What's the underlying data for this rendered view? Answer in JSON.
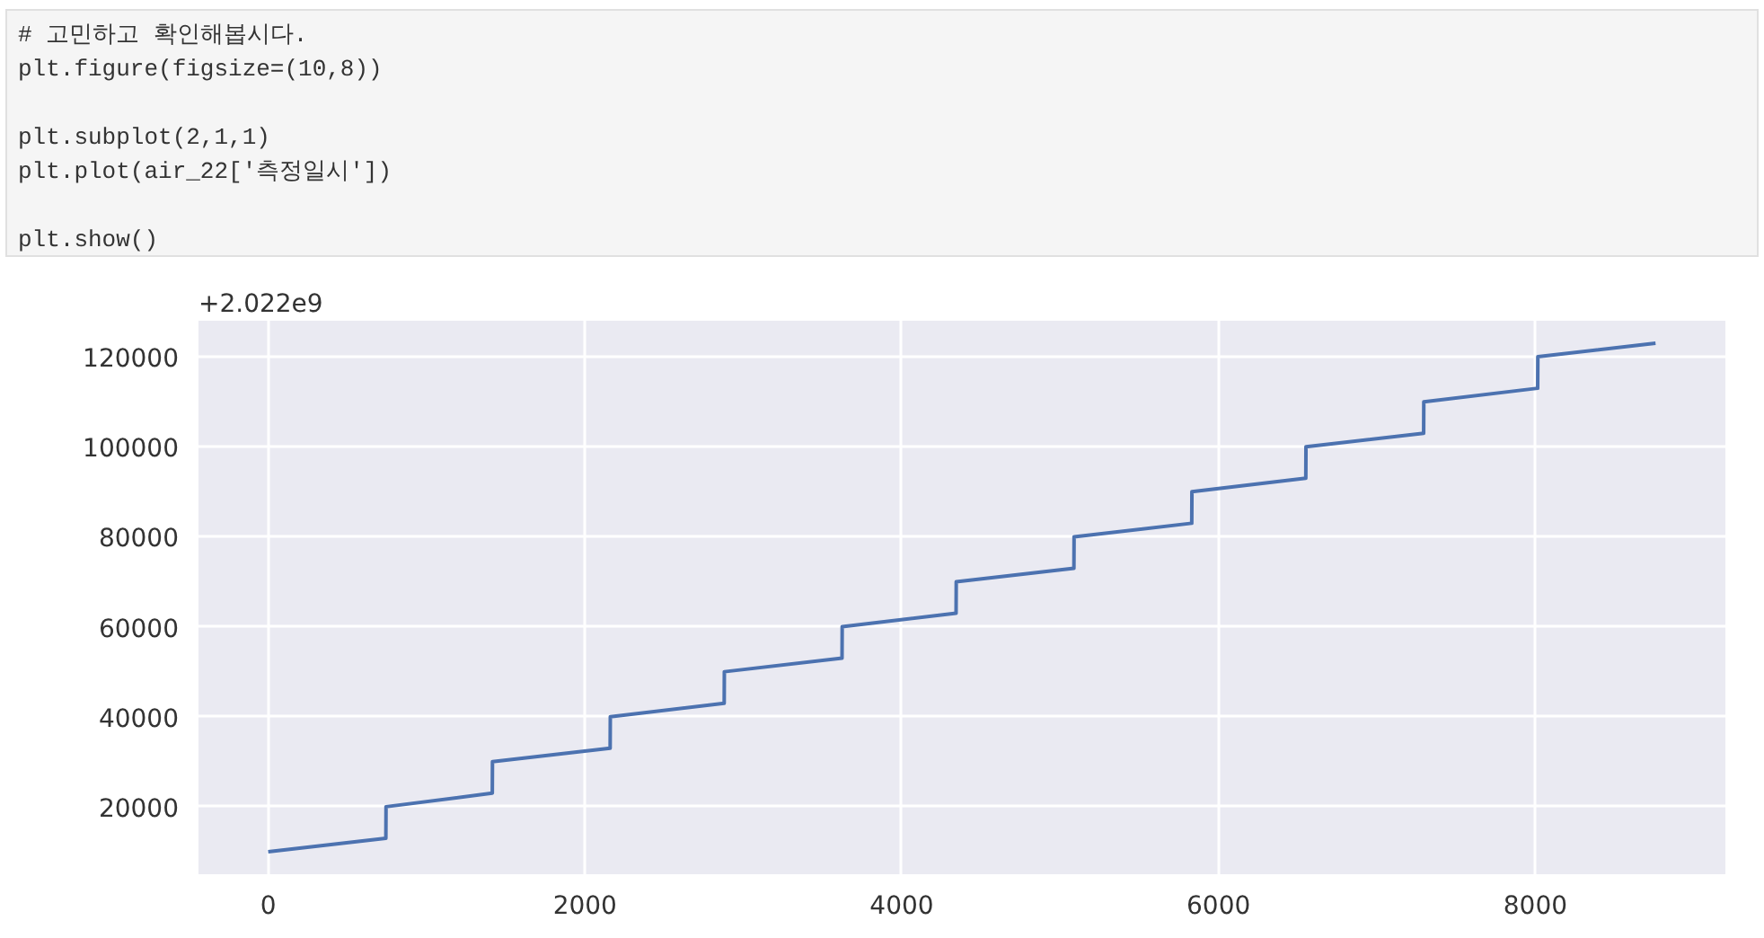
{
  "chart_data": {
    "type": "line",
    "annotations": [
      "# 고민하고 확인해봅시다.\nplt.figure(figsize=(10,8))",
      "plt.subplot(2,1,1)\nplt.plot(air_22['측정일시'])",
      "plt.show()",
      "+2.022e9"
    ],
    "x": [
      0,
      743,
      744,
      1415,
      1416,
      2159,
      2160,
      2879,
      2880,
      3623,
      3624,
      4343,
      4344,
      5087,
      5088,
      5831,
      5832,
      6551,
      6552,
      7295,
      7296,
      8015,
      8016,
      8759
    ],
    "series": [
      {
        "color": "#4c72b0",
        "values": [
          10000,
          13000,
          20000,
          23000,
          30000,
          33000,
          40000,
          43000,
          50000,
          53000,
          60000,
          63000,
          70000,
          73000,
          80000,
          83000,
          90000,
          93000,
          100000,
          103000,
          110000,
          113000,
          120000,
          123000
        ]
      }
    ],
    "xlim": [
      -440,
      9200
    ],
    "ylim": [
      5000,
      128000
    ],
    "xticks": [
      0,
      2000,
      4000,
      6000,
      8000
    ],
    "yticks": [
      20000,
      40000,
      60000,
      80000,
      100000,
      120000
    ],
    "grid": true,
    "marker": "none",
    "line_style": "solid"
  }
}
